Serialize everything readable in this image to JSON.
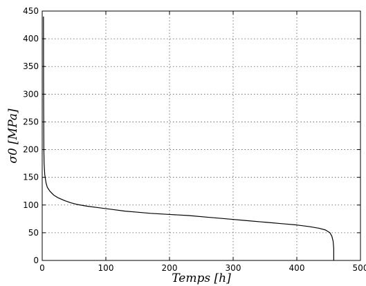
{
  "chart_data": {
    "type": "line",
    "title": "",
    "xlabel": "Temps [h]",
    "ylabel": "σ0 [MPa]",
    "xlim": [
      0,
      500
    ],
    "ylim": [
      0,
      450
    ],
    "xticks": [
      0,
      100,
      200,
      300,
      400,
      500
    ],
    "yticks": [
      0,
      50,
      100,
      150,
      200,
      250,
      300,
      350,
      400,
      450
    ],
    "grid": true,
    "legend": "none",
    "series": [
      {
        "color": "#000000",
        "x": [
          2,
          2.1,
          2.2,
          2.4,
          2.6,
          3,
          4,
          6,
          8,
          12,
          18,
          25,
          35,
          45,
          55,
          70,
          90,
          110,
          130,
          150,
          170,
          200,
          230,
          260,
          290,
          320,
          350,
          380,
          400,
          420,
          435,
          445,
          452,
          455,
          457,
          458,
          458
        ],
        "y": [
          440,
          350,
          300,
          250,
          200,
          175,
          155,
          140,
          132,
          125,
          118,
          113,
          108,
          104,
          101,
          98,
          95,
          92,
          89,
          87,
          85,
          83,
          81,
          78,
          75,
          72,
          69,
          66,
          64,
          61,
          58,
          55,
          50,
          44,
          35,
          22,
          0
        ]
      }
    ]
  }
}
